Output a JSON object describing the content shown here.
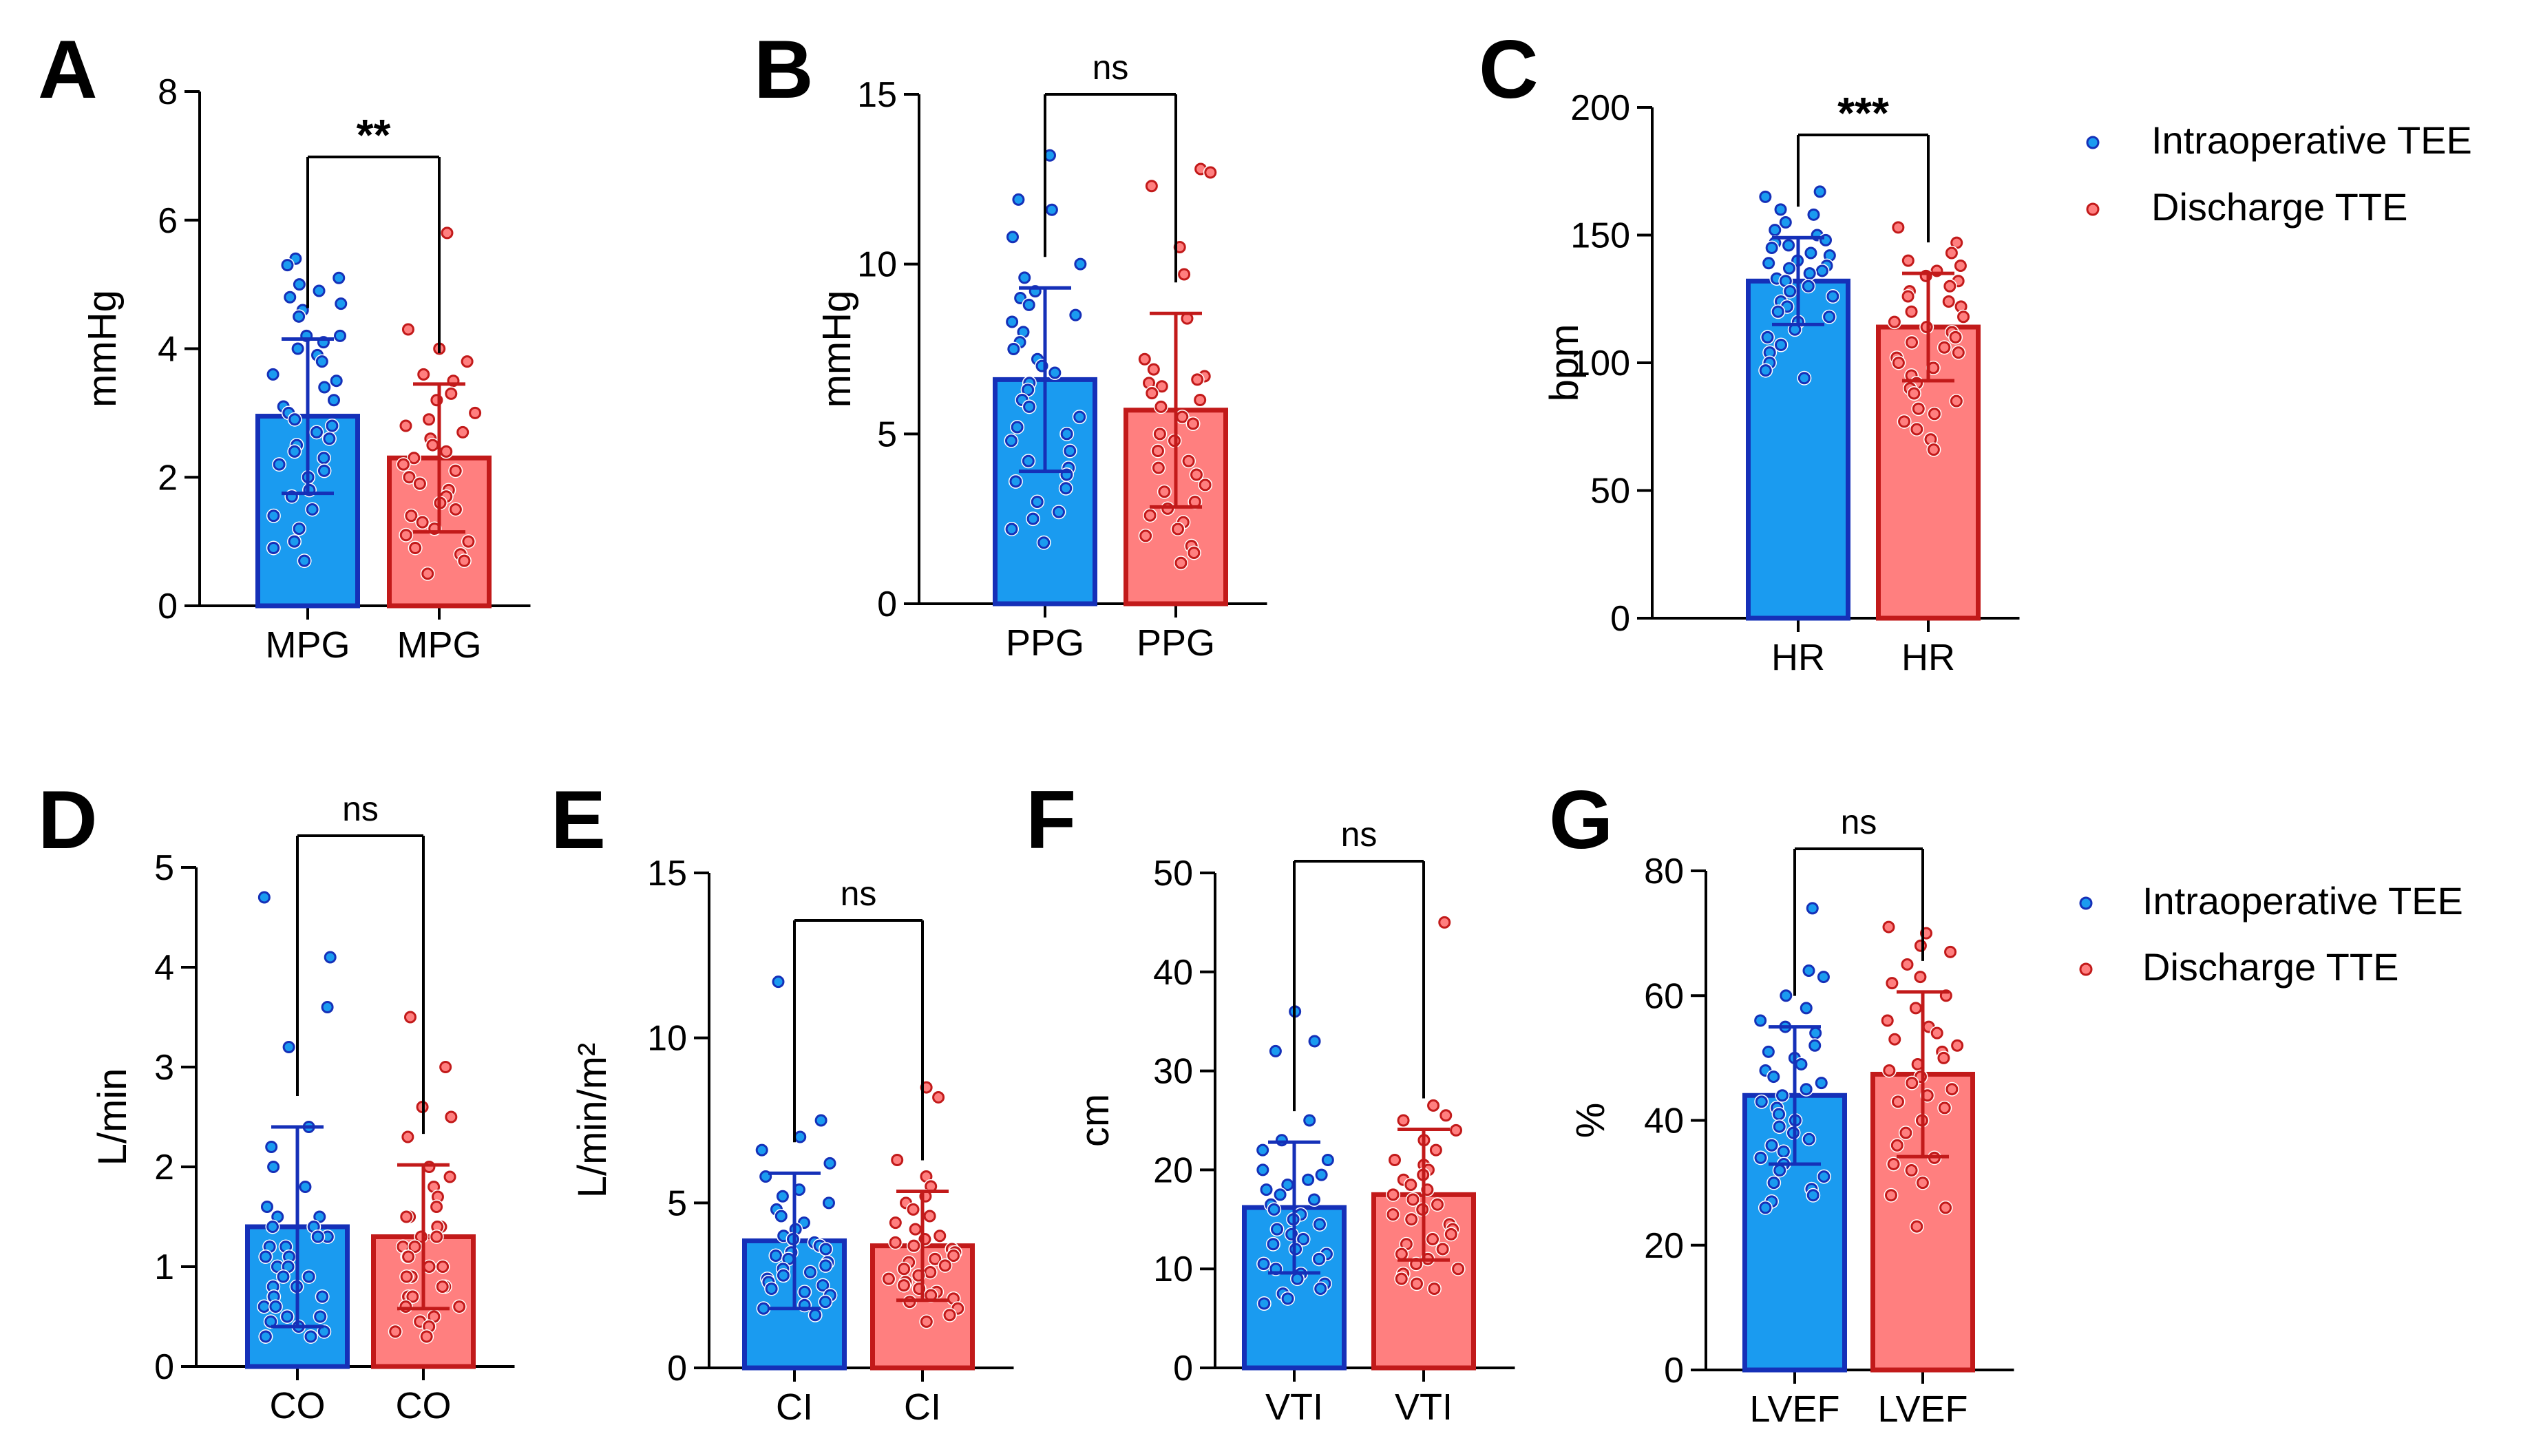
{
  "colors": {
    "tee_fill": "#1a9bf0",
    "tee_edge": "#1530b8",
    "tte_fill": "#ff7f7f",
    "tte_edge": "#c21a1a"
  },
  "legend": {
    "tee": "Intraoperative TEE",
    "tte": "Discharge TTE"
  },
  "chart_data": [
    {
      "panel": "A",
      "type": "bar",
      "ylabel": "mmHg",
      "ylim": [
        0,
        8
      ],
      "yticks": [
        "0",
        "2",
        "4",
        "6",
        "8"
      ],
      "categories": [
        "MPG",
        "MPG"
      ],
      "series": [
        {
          "name": "Intraoperative TEE",
          "mean": 2.95,
          "sd": 1.2,
          "points": [
            5.4,
            5.3,
            5.1,
            5.0,
            4.9,
            4.8,
            4.7,
            4.6,
            4.5,
            4.2,
            4.2,
            4.1,
            4.0,
            3.9,
            3.8,
            3.6,
            3.5,
            3.4,
            3.2,
            3.1,
            3.0,
            2.9,
            2.8,
            2.7,
            2.6,
            2.5,
            2.4,
            2.3,
            2.2,
            2.1,
            2.0,
            1.8,
            1.7,
            1.5,
            1.4,
            1.2,
            1.0,
            0.9,
            0.7
          ]
        },
        {
          "name": "Discharge TTE",
          "mean": 2.3,
          "sd": 1.15,
          "points": [
            5.8,
            4.3,
            4.0,
            3.8,
            3.6,
            3.5,
            3.3,
            3.2,
            3.0,
            2.9,
            2.8,
            2.7,
            2.6,
            2.5,
            2.4,
            2.3,
            2.2,
            2.1,
            2.0,
            1.9,
            1.8,
            1.7,
            1.6,
            1.5,
            1.4,
            1.3,
            1.2,
            1.1,
            1.0,
            0.9,
            0.8,
            0.7,
            0.5
          ]
        }
      ],
      "significance": "**"
    },
    {
      "panel": "B",
      "type": "bar",
      "ylabel": "mmHg",
      "ylim": [
        0,
        15
      ],
      "yticks": [
        "0",
        "5",
        "10",
        "15"
      ],
      "categories": [
        "PPG",
        "PPG"
      ],
      "series": [
        {
          "name": "Intraoperative TEE",
          "mean": 6.6,
          "sd": 2.7,
          "points": [
            13.2,
            11.9,
            11.6,
            10.8,
            10.0,
            9.6,
            9.2,
            9.0,
            8.8,
            8.5,
            8.3,
            8.0,
            7.7,
            7.5,
            7.2,
            7.0,
            6.8,
            6.5,
            6.3,
            6.0,
            5.8,
            5.5,
            5.2,
            5.0,
            4.8,
            4.5,
            4.2,
            4.0,
            3.8,
            3.6,
            3.4,
            3.0,
            2.7,
            2.5,
            2.2,
            1.8
          ]
        },
        {
          "name": "Discharge TTE",
          "mean": 5.7,
          "sd": 2.85,
          "points": [
            12.8,
            12.7,
            12.3,
            10.5,
            9.7,
            8.4,
            7.2,
            6.9,
            6.7,
            6.6,
            6.5,
            6.4,
            6.2,
            6.0,
            5.8,
            5.5,
            5.3,
            5.0,
            4.8,
            4.5,
            4.2,
            4.0,
            3.8,
            3.5,
            3.3,
            3.0,
            2.8,
            2.6,
            2.4,
            2.2,
            2.0,
            1.7,
            1.5,
            1.2
          ]
        }
      ],
      "significance": "ns"
    },
    {
      "panel": "C",
      "type": "bar",
      "ylabel": "bpm",
      "ylim": [
        0,
        200
      ],
      "yticks": [
        "0",
        "50",
        "100",
        "150",
        "200"
      ],
      "categories": [
        "HR",
        "HR"
      ],
      "series": [
        {
          "name": "Intraoperative TEE",
          "mean": 132,
          "sd": 17,
          "points": [
            167,
            165,
            160,
            158,
            155,
            152,
            150,
            148,
            147,
            146,
            145,
            143,
            142,
            140,
            139,
            138,
            137,
            136,
            135,
            133,
            132,
            130,
            128,
            126,
            124,
            122,
            120,
            118,
            116,
            113,
            110,
            107,
            104,
            100,
            97,
            94
          ]
        },
        {
          "name": "Discharge TTE",
          "mean": 114,
          "sd": 21,
          "points": [
            153,
            147,
            143,
            140,
            138,
            136,
            134,
            132,
            130,
            128,
            126,
            124,
            122,
            120,
            118,
            116,
            114,
            112,
            110,
            108,
            106,
            104,
            102,
            100,
            98,
            95,
            92,
            90,
            88,
            85,
            82,
            80,
            77,
            74,
            70,
            66
          ]
        }
      ],
      "significance": "***"
    },
    {
      "panel": "D",
      "type": "bar",
      "ylabel": "L/min",
      "ylim": [
        0,
        5
      ],
      "yticks": [
        "0",
        "1",
        "2",
        "3",
        "4",
        "5"
      ],
      "categories": [
        "CO",
        "CO"
      ],
      "series": [
        {
          "name": "Intraoperative TEE",
          "mean": 1.4,
          "sd": 1.0,
          "points": [
            4.7,
            4.1,
            3.6,
            3.2,
            2.4,
            2.2,
            2.0,
            1.8,
            1.6,
            1.5,
            1.5,
            1.4,
            1.4,
            1.3,
            1.3,
            1.2,
            1.2,
            1.1,
            1.1,
            1.0,
            1.0,
            0.9,
            0.9,
            0.8,
            0.8,
            0.7,
            0.7,
            0.6,
            0.6,
            0.5,
            0.5,
            0.45,
            0.4,
            0.35,
            0.3,
            0.3
          ]
        },
        {
          "name": "Discharge TTE",
          "mean": 1.3,
          "sd": 0.72,
          "points": [
            3.5,
            3.0,
            2.6,
            2.5,
            2.3,
            2.0,
            1.9,
            1.8,
            1.7,
            1.6,
            1.5,
            1.5,
            1.4,
            1.4,
            1.3,
            1.3,
            1.2,
            1.2,
            1.1,
            1.1,
            1.0,
            1.0,
            0.9,
            0.9,
            0.8,
            0.8,
            0.7,
            0.7,
            0.6,
            0.6,
            0.5,
            0.45,
            0.4,
            0.35,
            0.3
          ]
        }
      ],
      "significance": "ns"
    },
    {
      "panel": "E",
      "type": "bar",
      "ylabel": "L/min/m²",
      "ylim": [
        0,
        15
      ],
      "yticks": [
        "0",
        "5",
        "10",
        "15"
      ],
      "categories": [
        "CI",
        "CI"
      ],
      "series": [
        {
          "name": "Intraoperative TEE",
          "mean": 3.85,
          "sd": 2.05,
          "points": [
            11.7,
            7.5,
            7.0,
            6.6,
            6.2,
            5.8,
            5.4,
            5.2,
            5.0,
            4.8,
            4.6,
            4.4,
            4.2,
            4.0,
            3.9,
            3.8,
            3.7,
            3.6,
            3.5,
            3.4,
            3.3,
            3.2,
            3.1,
            3.0,
            2.9,
            2.8,
            2.7,
            2.6,
            2.5,
            2.4,
            2.3,
            2.2,
            2.0,
            1.9,
            1.8,
            1.6
          ]
        },
        {
          "name": "Discharge TTE",
          "mean": 3.7,
          "sd": 1.65,
          "points": [
            8.5,
            8.2,
            6.3,
            5.8,
            5.5,
            5.2,
            5.0,
            4.8,
            4.6,
            4.4,
            4.2,
            4.0,
            3.9,
            3.8,
            3.7,
            3.6,
            3.5,
            3.4,
            3.3,
            3.2,
            3.1,
            3.0,
            2.9,
            2.8,
            2.7,
            2.6,
            2.5,
            2.4,
            2.3,
            2.2,
            2.1,
            2.0,
            1.8,
            1.6,
            1.4
          ]
        }
      ],
      "significance": "ns"
    },
    {
      "panel": "F",
      "type": "bar",
      "ylabel": "cm",
      "ylim": [
        0,
        50
      ],
      "yticks": [
        "0",
        "10",
        "20",
        "30",
        "40",
        "50"
      ],
      "categories": [
        "VTI",
        "VTI"
      ],
      "series": [
        {
          "name": "Intraoperative TEE",
          "mean": 16.2,
          "sd": 6.6,
          "points": [
            36,
            33,
            32,
            25,
            23,
            22,
            21,
            20,
            19.5,
            19,
            18.5,
            18,
            17.5,
            17,
            16.5,
            16,
            15.5,
            15,
            14.5,
            14,
            13.5,
            13,
            12.5,
            12,
            11.5,
            11,
            10.5,
            10,
            9.5,
            9,
            8.5,
            8,
            7.5,
            7,
            6.5
          ]
        },
        {
          "name": "Discharge TTE",
          "mean": 17.5,
          "sd": 6.6,
          "points": [
            45,
            26.5,
            25.5,
            25,
            24,
            23,
            22,
            21,
            20.5,
            20,
            19.5,
            19,
            18.5,
            18,
            17.5,
            17,
            16.5,
            16,
            15.5,
            15,
            14.5,
            14,
            13.5,
            13,
            12.5,
            12,
            11.5,
            11,
            10.5,
            10,
            9.5,
            9,
            8.5,
            8
          ]
        }
      ],
      "significance": "ns"
    },
    {
      "panel": "G",
      "type": "bar",
      "ylabel": "%",
      "ylim": [
        0,
        80
      ],
      "yticks": [
        "0",
        "20",
        "40",
        "60",
        "80"
      ],
      "categories": [
        "LVEF",
        "LVEF"
      ],
      "series": [
        {
          "name": "Intraoperative TEE",
          "mean": 44,
          "sd": 11,
          "points": [
            74,
            64,
            63,
            60,
            58,
            56,
            55,
            54,
            52,
            51,
            50,
            49,
            48,
            47,
            46,
            45,
            44,
            43,
            42,
            41,
            40,
            39,
            38,
            37,
            36,
            35,
            34,
            33,
            32,
            31,
            30,
            29,
            28,
            27,
            26
          ]
        },
        {
          "name": "Discharge TTE",
          "mean": 47.4,
          "sd": 13.2,
          "points": [
            71,
            70,
            68,
            67,
            65,
            63,
            62,
            60,
            58,
            56,
            55,
            54,
            53,
            52,
            51,
            50,
            49,
            48,
            47,
            46,
            45,
            44,
            43,
            42,
            40,
            38,
            36,
            34,
            33,
            32,
            30,
            28,
            26,
            23
          ]
        }
      ],
      "significance": "ns"
    }
  ]
}
